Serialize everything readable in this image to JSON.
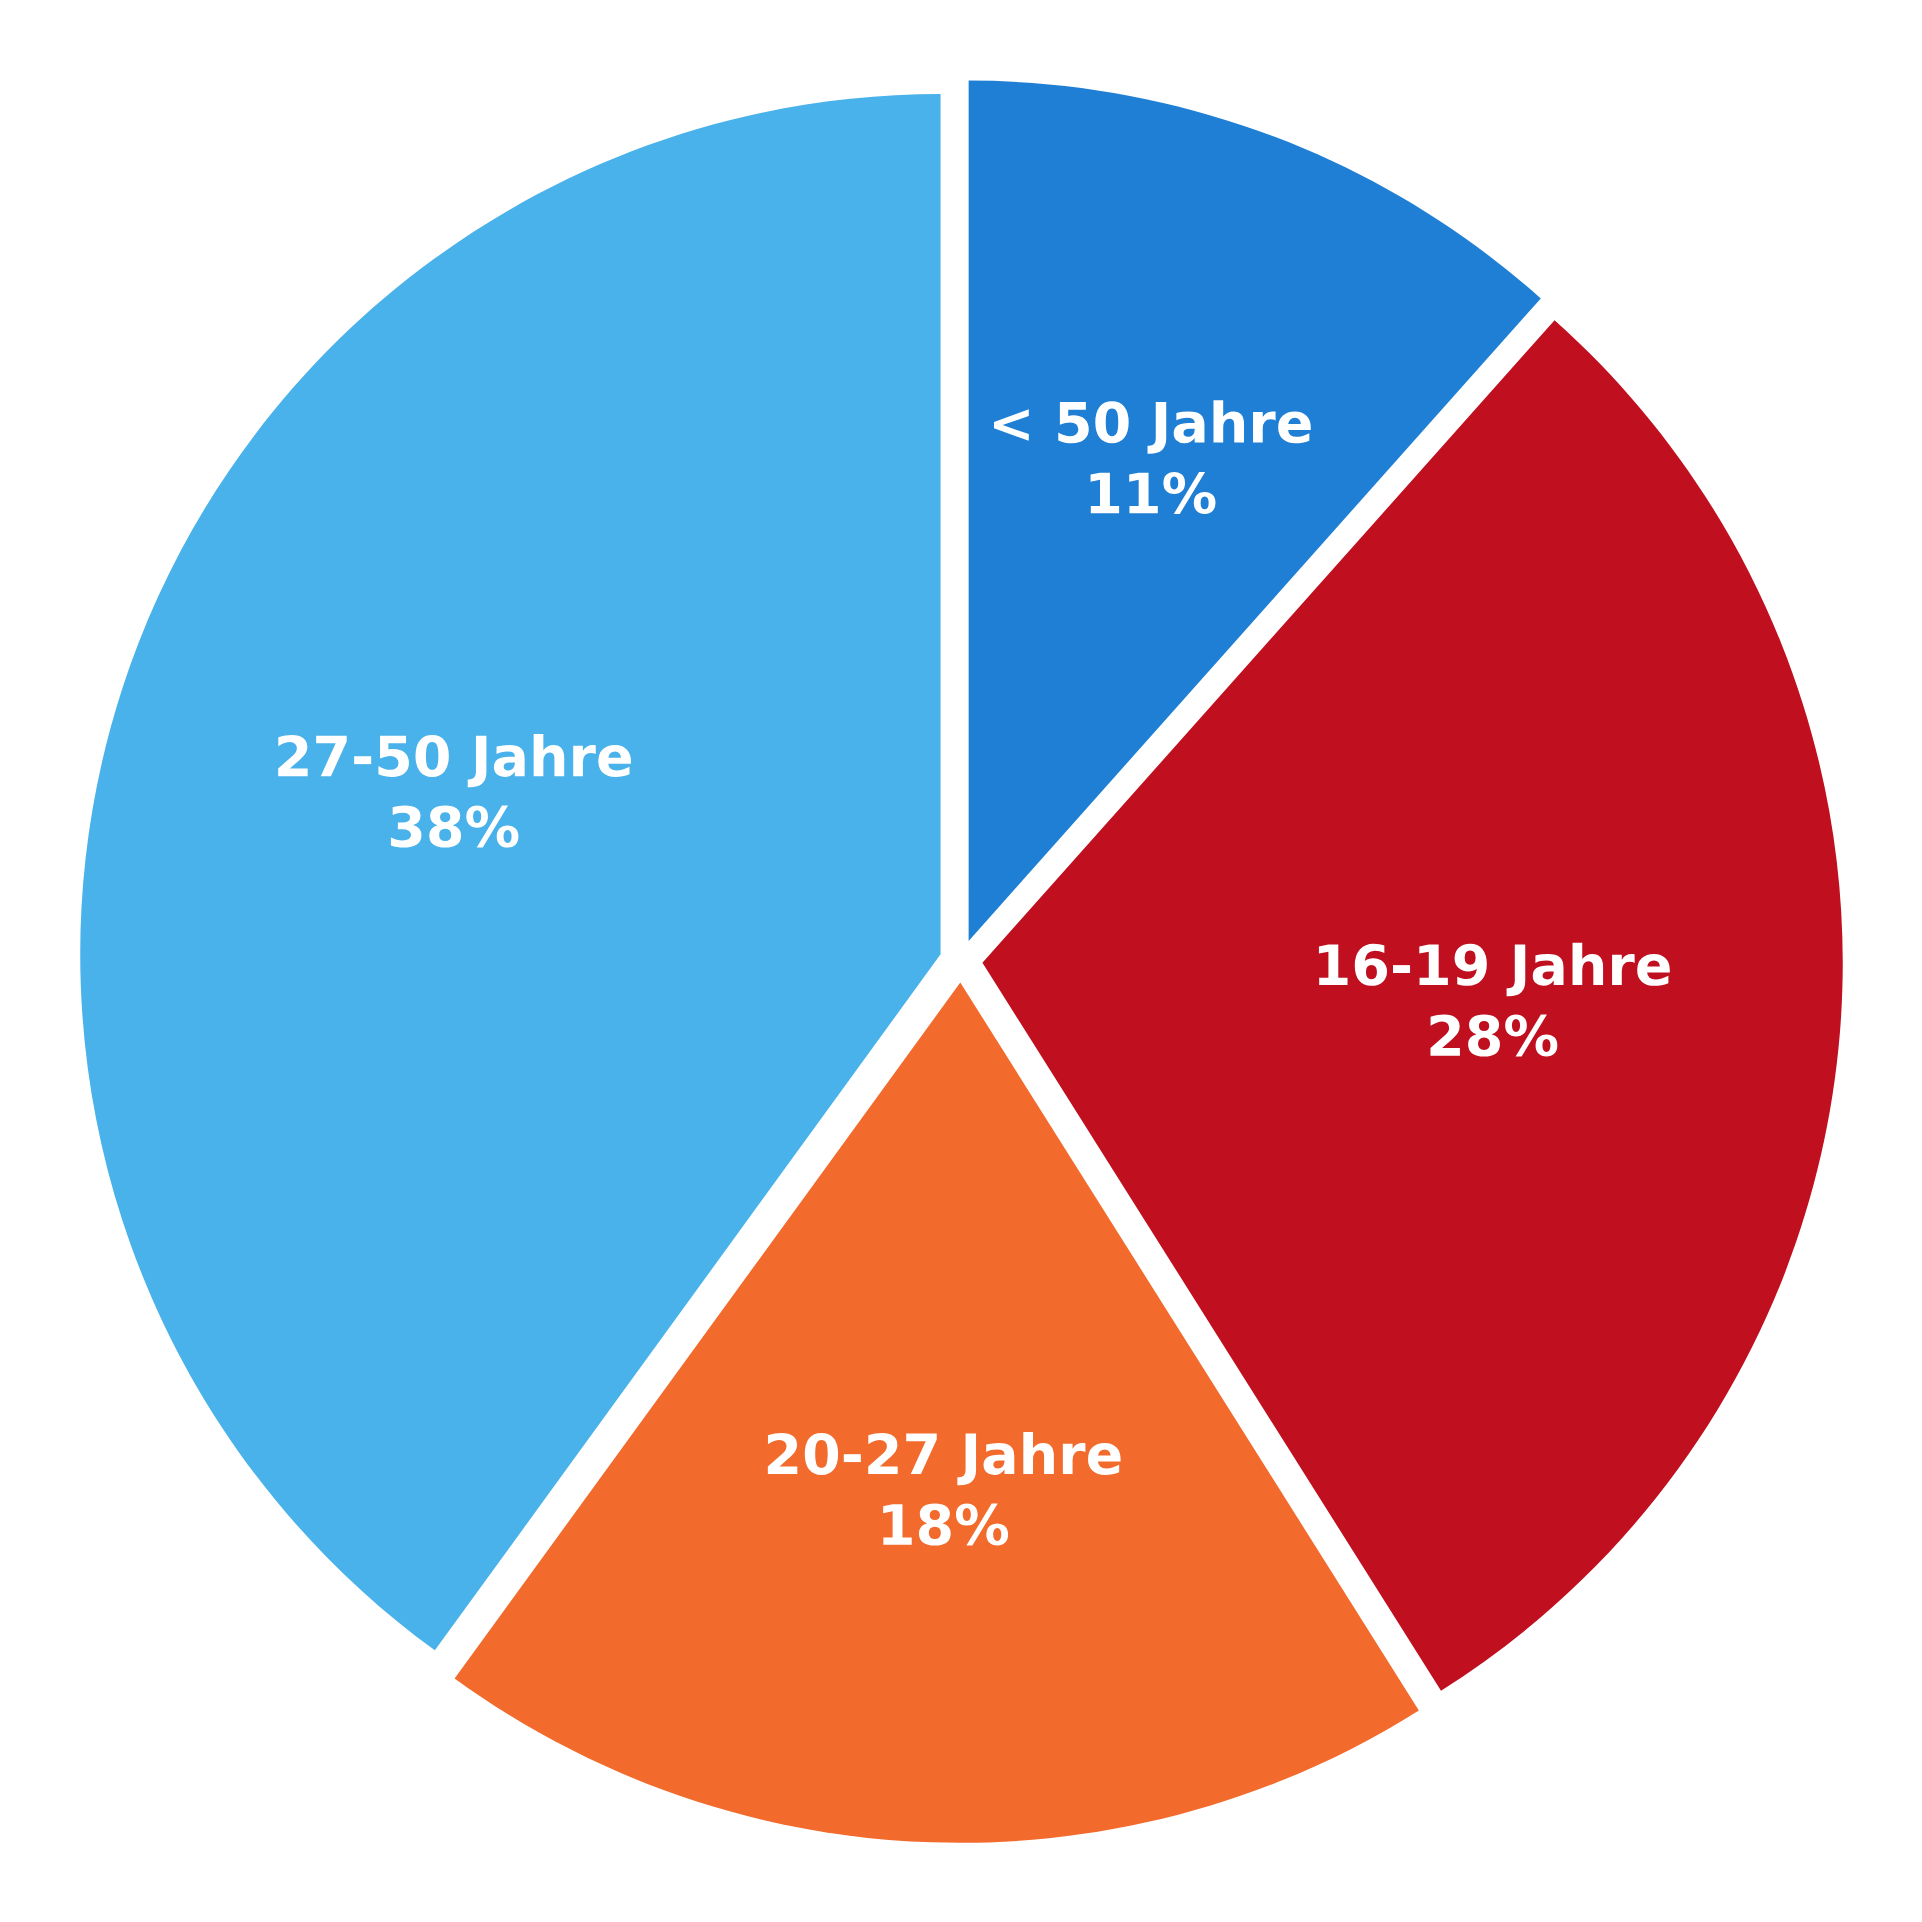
{
  "chart_data": {
    "type": "pie",
    "categories": [
      "< 50 Jahre",
      "16-19 Jahre",
      "20-27 Jahre",
      "27-50 Jahre"
    ],
    "values": [
      11,
      28,
      18,
      38
    ],
    "value_labels": [
      "11%",
      "28%",
      "18%",
      "38%"
    ],
    "colors": [
      "#1f7fd4",
      "#c01020",
      "#f26a2c",
      "#4ab2ea"
    ]
  }
}
